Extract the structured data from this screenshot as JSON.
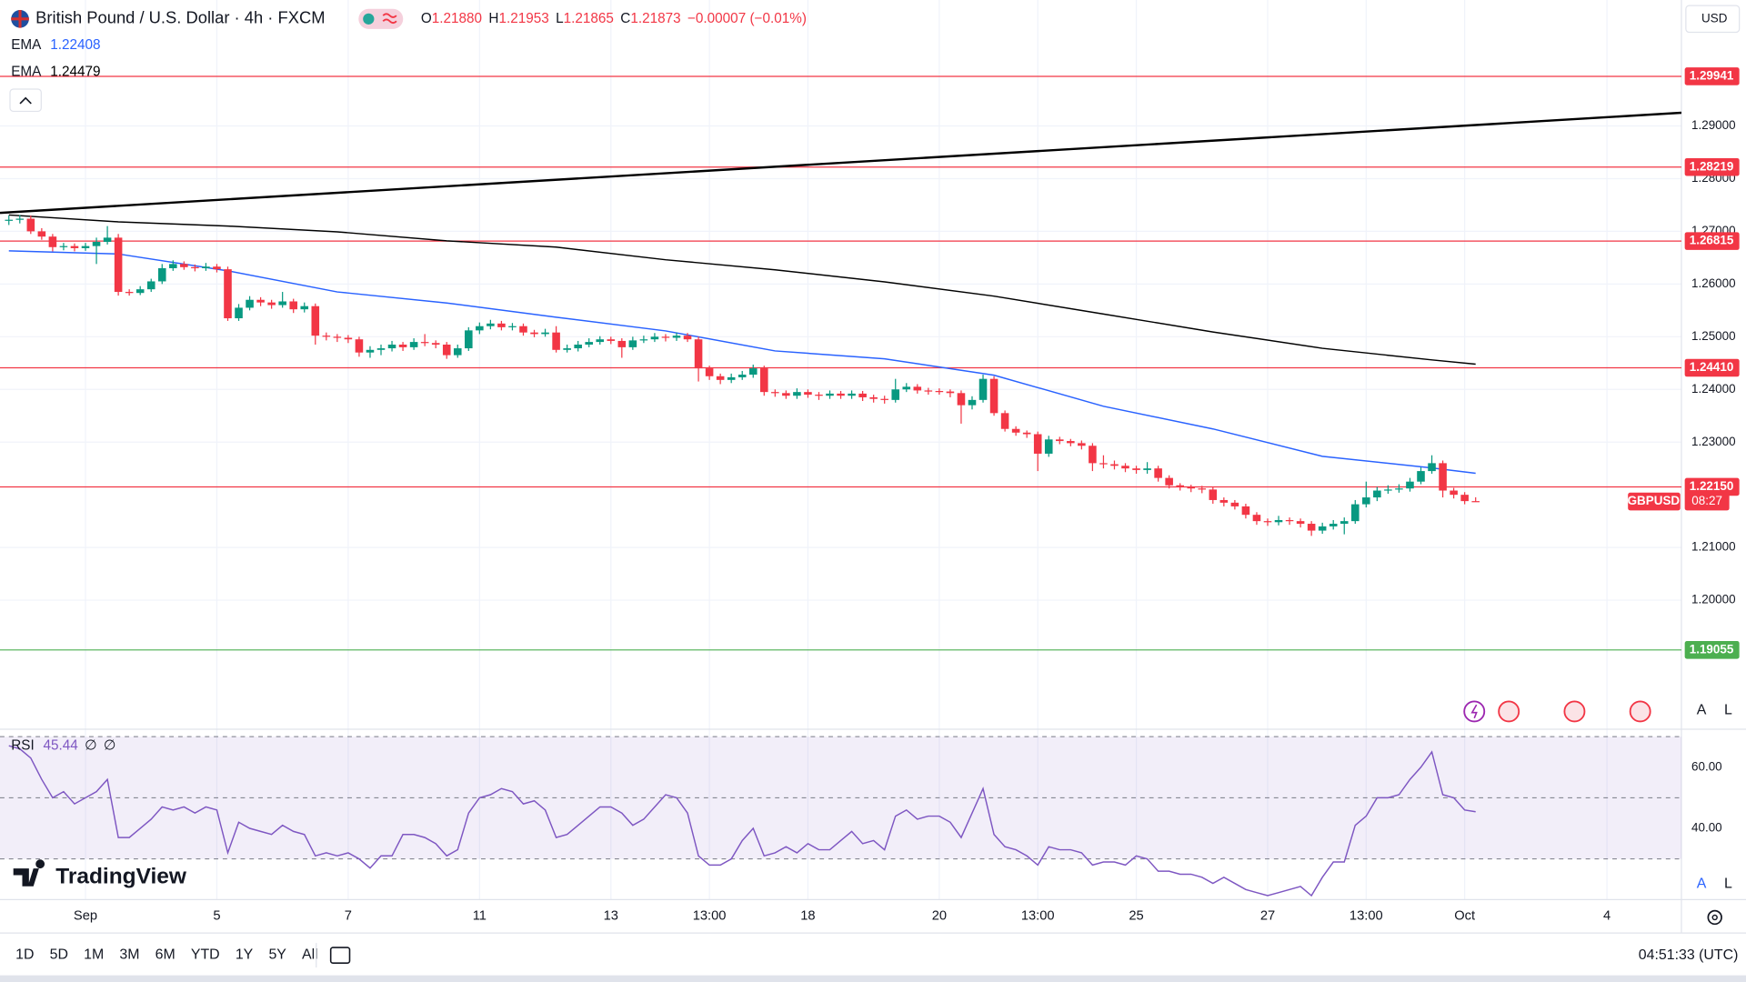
{
  "chart_data": {
    "type": "candlestick",
    "title": "British Pound / U.S. Dollar · 4h · FXCM",
    "ohlc": [
      {
        "label": "O",
        "value": "1.21880"
      },
      {
        "label": "H",
        "value": "1.21953"
      },
      {
        "label": "L",
        "value": "1.21865"
      },
      {
        "label": "C",
        "value": "1.21873"
      }
    ],
    "change": "−0.00007 (−0.01%)",
    "up_color": "#089981",
    "down_color": "#f23645",
    "candles": [
      [
        1.272,
        1.273,
        1.2712,
        1.2722
      ],
      [
        1.2722,
        1.2731,
        1.2715,
        1.2724
      ],
      [
        1.2724,
        1.273,
        1.2695,
        1.27
      ],
      [
        1.27,
        1.2706,
        1.2684,
        1.269
      ],
      [
        1.269,
        1.2695,
        1.2662,
        1.267
      ],
      [
        1.267,
        1.2678,
        1.2664,
        1.2672
      ],
      [
        1.2672,
        1.2677,
        1.2662,
        1.2668
      ],
      [
        1.2668,
        1.2678,
        1.2663,
        1.2672
      ],
      [
        1.2672,
        1.2688,
        1.2638,
        1.268
      ],
      [
        1.268,
        1.271,
        1.2675,
        1.2688
      ],
      [
        1.2688,
        1.2695,
        1.2578,
        1.2585
      ],
      [
        1.2585,
        1.259,
        1.2578,
        1.2583
      ],
      [
        1.2583,
        1.2596,
        1.2579,
        1.259
      ],
      [
        1.259,
        1.261,
        1.2585,
        1.2605
      ],
      [
        1.2605,
        1.2638,
        1.26,
        1.263
      ],
      [
        1.263,
        1.2645,
        1.2625,
        1.2638
      ],
      [
        1.2638,
        1.2643,
        1.2627,
        1.2632
      ],
      [
        1.2632,
        1.2637,
        1.2624,
        1.263
      ],
      [
        1.263,
        1.264,
        1.2625,
        1.2633
      ],
      [
        1.2633,
        1.2638,
        1.2622,
        1.2628
      ],
      [
        1.2628,
        1.2633,
        1.253,
        1.2535
      ],
      [
        1.2535,
        1.2562,
        1.253,
        1.2555
      ],
      [
        1.2555,
        1.2577,
        1.255,
        1.257
      ],
      [
        1.257,
        1.2575,
        1.2558,
        1.2565
      ],
      [
        1.2565,
        1.257,
        1.2553,
        1.256
      ],
      [
        1.256,
        1.2585,
        1.2555,
        1.2567
      ],
      [
        1.2567,
        1.2572,
        1.2545,
        1.2552
      ],
      [
        1.2552,
        1.2565,
        1.2546,
        1.2558
      ],
      [
        1.2558,
        1.2563,
        1.2485,
        1.2502
      ],
      [
        1.2502,
        1.2508,
        1.2493,
        1.25
      ],
      [
        1.25,
        1.2505,
        1.249,
        1.2498
      ],
      [
        1.2498,
        1.2503,
        1.2488,
        1.2495
      ],
      [
        1.2495,
        1.25,
        1.2462,
        1.247
      ],
      [
        1.247,
        1.2482,
        1.246,
        1.2475
      ],
      [
        1.2475,
        1.2485,
        1.2465,
        1.2478
      ],
      [
        1.2478,
        1.2492,
        1.2472,
        1.2485
      ],
      [
        1.2485,
        1.249,
        1.2473,
        1.248
      ],
      [
        1.248,
        1.2497,
        1.2475,
        1.249
      ],
      [
        1.249,
        1.2505,
        1.2482,
        1.2488
      ],
      [
        1.2488,
        1.2493,
        1.2478,
        1.2485
      ],
      [
        1.2485,
        1.249,
        1.2458,
        1.2465
      ],
      [
        1.2465,
        1.2485,
        1.246,
        1.2478
      ],
      [
        1.2478,
        1.2518,
        1.2473,
        1.2512
      ],
      [
        1.2512,
        1.2527,
        1.2505,
        1.252
      ],
      [
        1.252,
        1.2532,
        1.2514,
        1.2525
      ],
      [
        1.2525,
        1.253,
        1.2512,
        1.2518
      ],
      [
        1.2518,
        1.2526,
        1.2512,
        1.252
      ],
      [
        1.252,
        1.2525,
        1.2502,
        1.2508
      ],
      [
        1.2508,
        1.2513,
        1.2499,
        1.2505
      ],
      [
        1.2505,
        1.2515,
        1.25,
        1.2508
      ],
      [
        1.2508,
        1.252,
        1.247,
        1.2475
      ],
      [
        1.2475,
        1.2485,
        1.247,
        1.2478
      ],
      [
        1.2478,
        1.2492,
        1.2472,
        1.2485
      ],
      [
        1.2485,
        1.2497,
        1.248,
        1.249
      ],
      [
        1.249,
        1.2501,
        1.2485,
        1.2495
      ],
      [
        1.2495,
        1.25,
        1.2486,
        1.2492
      ],
      [
        1.2492,
        1.2497,
        1.246,
        1.248
      ],
      [
        1.248,
        1.25,
        1.2475,
        1.2493
      ],
      [
        1.2493,
        1.2502,
        1.2488,
        1.2495
      ],
      [
        1.2495,
        1.2507,
        1.249,
        1.25
      ],
      [
        1.25,
        1.2505,
        1.2491,
        1.2498
      ],
      [
        1.2498,
        1.2508,
        1.2492,
        1.2502
      ],
      [
        1.2502,
        1.2507,
        1.249,
        1.2495
      ],
      [
        1.2495,
        1.25,
        1.2415,
        1.244
      ],
      [
        1.244,
        1.2445,
        1.2418,
        1.2425
      ],
      [
        1.2425,
        1.243,
        1.241,
        1.2418
      ],
      [
        1.2418,
        1.243,
        1.2412,
        1.2423
      ],
      [
        1.2423,
        1.2435,
        1.2418,
        1.2428
      ],
      [
        1.2428,
        1.2447,
        1.2422,
        1.244
      ],
      [
        1.244,
        1.2445,
        1.2388,
        1.2395
      ],
      [
        1.2395,
        1.24,
        1.2386,
        1.2393
      ],
      [
        1.2393,
        1.2398,
        1.2382,
        1.2388
      ],
      [
        1.2388,
        1.2402,
        1.2382,
        1.2395
      ],
      [
        1.2395,
        1.24,
        1.2384,
        1.239
      ],
      [
        1.239,
        1.2395,
        1.238,
        1.2388
      ],
      [
        1.2388,
        1.2398,
        1.2382,
        1.2392
      ],
      [
        1.2392,
        1.2397,
        1.2382,
        1.2388
      ],
      [
        1.2388,
        1.2398,
        1.2382,
        1.2392
      ],
      [
        1.2392,
        1.2397,
        1.2378,
        1.2385
      ],
      [
        1.2385,
        1.239,
        1.2375,
        1.2382
      ],
      [
        1.2382,
        1.2388,
        1.2373,
        1.238
      ],
      [
        1.238,
        1.242,
        1.2375,
        1.24
      ],
      [
        1.24,
        1.2412,
        1.2395,
        1.2405
      ],
      [
        1.2405,
        1.241,
        1.2392,
        1.2398
      ],
      [
        1.2398,
        1.2403,
        1.239,
        1.2397
      ],
      [
        1.2397,
        1.2402,
        1.239,
        1.2396
      ],
      [
        1.2396,
        1.24,
        1.2385,
        1.2393
      ],
      [
        1.2393,
        1.2398,
        1.2335,
        1.237
      ],
      [
        1.237,
        1.2387,
        1.2362,
        1.238
      ],
      [
        1.238,
        1.2428,
        1.2375,
        1.242
      ],
      [
        1.242,
        1.2425,
        1.235,
        1.2355
      ],
      [
        1.2355,
        1.236,
        1.232,
        1.2325
      ],
      [
        1.2325,
        1.233,
        1.2312,
        1.2318
      ],
      [
        1.2318,
        1.2322,
        1.2308,
        1.2315
      ],
      [
        1.2315,
        1.232,
        1.2245,
        1.2278
      ],
      [
        1.2278,
        1.2312,
        1.2272,
        1.2305
      ],
      [
        1.2305,
        1.231,
        1.2296,
        1.2302
      ],
      [
        1.2302,
        1.2306,
        1.2292,
        1.2298
      ],
      [
        1.2298,
        1.2303,
        1.2286,
        1.2293
      ],
      [
        1.2293,
        1.2298,
        1.2245,
        1.226
      ],
      [
        1.226,
        1.2275,
        1.225,
        1.2258
      ],
      [
        1.2258,
        1.2265,
        1.2248,
        1.2255
      ],
      [
        1.2255,
        1.226,
        1.2243,
        1.225
      ],
      [
        1.225,
        1.2255,
        1.224,
        1.2247
      ],
      [
        1.2247,
        1.2262,
        1.224,
        1.225
      ],
      [
        1.225,
        1.2255,
        1.2225,
        1.2232
      ],
      [
        1.2232,
        1.2237,
        1.2212,
        1.2218
      ],
      [
        1.2218,
        1.2222,
        1.2208,
        1.2215
      ],
      [
        1.2215,
        1.2219,
        1.2205,
        1.2212
      ],
      [
        1.2212,
        1.2217,
        1.2203,
        1.221
      ],
      [
        1.221,
        1.2215,
        1.2183,
        1.219
      ],
      [
        1.219,
        1.2195,
        1.2178,
        1.2185
      ],
      [
        1.2185,
        1.219,
        1.2172,
        1.2178
      ],
      [
        1.2178,
        1.2183,
        1.2155,
        1.2162
      ],
      [
        1.2162,
        1.2167,
        1.2143,
        1.215
      ],
      [
        1.215,
        1.2155,
        1.2141,
        1.2148
      ],
      [
        1.2148,
        1.216,
        1.2142,
        1.2152
      ],
      [
        1.2152,
        1.2157,
        1.2143,
        1.215
      ],
      [
        1.215,
        1.2155,
        1.2138,
        1.2145
      ],
      [
        1.2145,
        1.215,
        1.2122,
        1.2132
      ],
      [
        1.2132,
        1.2147,
        1.2126,
        1.214
      ],
      [
        1.214,
        1.2152,
        1.2134,
        1.2145
      ],
      [
        1.2145,
        1.2157,
        1.2125,
        1.215
      ],
      [
        1.215,
        1.219,
        1.2145,
        1.2182
      ],
      [
        1.2182,
        1.2225,
        1.2176,
        1.2195
      ],
      [
        1.2195,
        1.2215,
        1.2188,
        1.2208
      ],
      [
        1.2208,
        1.2218,
        1.2202,
        1.221
      ],
      [
        1.221,
        1.222,
        1.2204,
        1.2212
      ],
      [
        1.2212,
        1.2232,
        1.2206,
        1.2225
      ],
      [
        1.2225,
        1.2252,
        1.222,
        1.2245
      ],
      [
        1.2245,
        1.2275,
        1.224,
        1.226
      ],
      [
        1.226,
        1.2265,
        1.2195,
        1.2208
      ],
      [
        1.2208,
        1.2213,
        1.2193,
        1.22
      ],
      [
        1.22,
        1.2205,
        1.2182,
        1.2188
      ],
      [
        1.2188,
        1.21953,
        1.21865,
        1.21873
      ]
    ],
    "xlim": [
      -0.81,
      152.8
    ],
    "xticks": [
      {
        "value": 7,
        "label": "Sep"
      },
      {
        "value": 19,
        "label": "5"
      },
      {
        "value": 31,
        "label": "7"
      },
      {
        "value": 43,
        "label": "11"
      },
      {
        "value": 55,
        "label": "13"
      },
      {
        "value": 64,
        "label": "13:00"
      },
      {
        "value": 73,
        "label": "18"
      },
      {
        "value": 85,
        "label": "20"
      },
      {
        "value": 94,
        "label": "13:00"
      },
      {
        "value": 103,
        "label": "25"
      },
      {
        "value": 115,
        "label": "27"
      },
      {
        "value": 124,
        "label": "13:00"
      },
      {
        "value": 133,
        "label": "Oct"
      },
      {
        "value": 146,
        "label": "4"
      }
    ],
    "ylim": [
      1.1755,
      1.3139
    ],
    "yticks": [
      {
        "value": 1.29,
        "label": "1.29000"
      },
      {
        "value": 1.28,
        "label": "1.28000"
      },
      {
        "value": 1.27,
        "label": "1.27000"
      },
      {
        "value": 1.26,
        "label": "1.26000"
      },
      {
        "value": 1.25,
        "label": "1.25000"
      },
      {
        "value": 1.24,
        "label": "1.24000"
      },
      {
        "value": 1.23,
        "label": "1.23000"
      },
      {
        "value": 1.21,
        "label": "1.21000"
      },
      {
        "value": 1.2,
        "label": "1.20000"
      }
    ],
    "grid": true,
    "indicators": [
      {
        "name": "EMA",
        "value_label": "1.22408",
        "color": "#2962ff",
        "x": [
          0,
          10,
          20,
          30,
          40,
          50,
          60,
          70,
          80,
          90,
          100,
          110,
          120,
          130,
          134
        ],
        "values": [
          1.2663,
          1.2657,
          1.2625,
          1.2585,
          1.2564,
          1.2537,
          1.2511,
          1.2473,
          1.2458,
          1.2427,
          1.2368,
          1.2325,
          1.2273,
          1.2251,
          1.22408
        ]
      },
      {
        "name": "EMA",
        "value_label": "1.24479",
        "color": "#000000",
        "x": [
          0,
          10,
          20,
          30,
          40,
          50,
          60,
          70,
          80,
          90,
          100,
          110,
          120,
          130,
          134
        ],
        "values": [
          1.2731,
          1.2718,
          1.271,
          1.2699,
          1.2682,
          1.267,
          1.2646,
          1.2627,
          1.2604,
          1.2577,
          1.2543,
          1.2509,
          1.2478,
          1.2456,
          1.24479
        ]
      }
    ],
    "trendline": {
      "color": "#000000",
      "x": [
        -0.81,
        152.8
      ],
      "values": [
        1.2735,
        1.2925
      ]
    },
    "levels": [
      {
        "value": 1.29941,
        "label": "1.29941",
        "color": "#f23645"
      },
      {
        "value": 1.28219,
        "label": "1.28219",
        "color": "#f23645"
      },
      {
        "value": 1.26815,
        "label": "1.26815",
        "color": "#f23645"
      },
      {
        "value": 1.2441,
        "label": "1.24410",
        "color": "#f23645"
      },
      {
        "value": 1.2215,
        "label": "1.22150",
        "color": "#f23645"
      },
      {
        "value": 1.19055,
        "label": "1.19055",
        "color": "#4caf50"
      }
    ],
    "last_price": {
      "value": 1.21873,
      "symbol": "GBPUSD",
      "countdown": "08:27",
      "color": "#f23645"
    },
    "currency": "USD",
    "scale_buttons": [
      "A",
      "L"
    ],
    "rsi": {
      "name": "RSI",
      "value_label": "45.44",
      "extras": [
        "∅",
        "∅"
      ],
      "color": "#7e57c2",
      "ylim": [
        16.7,
        72.4
      ],
      "yticks": [
        {
          "value": 60,
          "label": "60.00"
        },
        {
          "value": 40,
          "label": "40.00"
        }
      ],
      "bands": [
        70,
        50,
        30
      ],
      "values": [
        67,
        66,
        63,
        56,
        50,
        52,
        48,
        50,
        52,
        56,
        37,
        37,
        40,
        43,
        47,
        46,
        47,
        45,
        47,
        46,
        32,
        42,
        40,
        39,
        38,
        41,
        39,
        38,
        31,
        32,
        31,
        32,
        30,
        27,
        31,
        31,
        38,
        38,
        37,
        35,
        31,
        33,
        45,
        50,
        51,
        53,
        52,
        48,
        49,
        46,
        37,
        38,
        41,
        44,
        47,
        47,
        45,
        41,
        43,
        47,
        51,
        50,
        45,
        31,
        28,
        28,
        30,
        36,
        40,
        31,
        32,
        34,
        32,
        35,
        33,
        33,
        36,
        39,
        35,
        36,
        33,
        44,
        46,
        43,
        44,
        44,
        42,
        37,
        45,
        53,
        38,
        34,
        33,
        31,
        28,
        34,
        33,
        33,
        32,
        28,
        29,
        29,
        28,
        31,
        30,
        26,
        26,
        25,
        25,
        24,
        22,
        24,
        22,
        20,
        19,
        18,
        19,
        20,
        21,
        18,
        24,
        29,
        29,
        41,
        44,
        50,
        50,
        51,
        56,
        60,
        65,
        51,
        50,
        46,
        45.44
      ]
    }
  },
  "toolbar": {
    "ranges": [
      "1D",
      "5D",
      "1M",
      "3M",
      "6M",
      "YTD",
      "1Y",
      "5Y",
      "All"
    ],
    "clock": "04:51:33 (UTC)"
  },
  "brand": "TradingView"
}
